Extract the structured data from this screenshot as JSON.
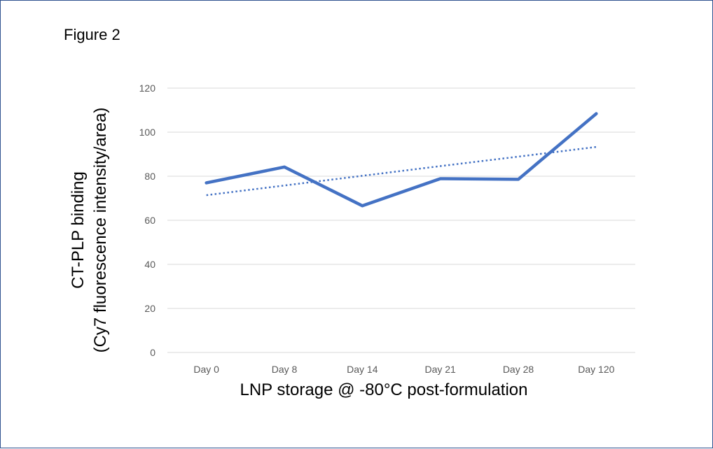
{
  "figure_title": "Figure 2",
  "chart_data": {
    "type": "line",
    "title": "",
    "xlabel": "LNP storage @ -80°C post-formulation",
    "ylabel": [
      "CT-PLP binding",
      "(Cy7 fluorescence intensity/area)"
    ],
    "categories": [
      "Day 0",
      "Day 8",
      "Day 14",
      "Day 21",
      "Day 28",
      "Day 120"
    ],
    "ylim": [
      0,
      120
    ],
    "yticks": [
      0,
      20,
      40,
      60,
      80,
      100,
      120
    ],
    "grid": true,
    "legend": "none",
    "series": [
      {
        "values": [
          77,
          84.2,
          66.6,
          78.9,
          78.6,
          108.4
        ],
        "color": "#4472c4",
        "style": "solid"
      }
    ],
    "trendline": {
      "type": "linear",
      "values": [
        71.4,
        75.8,
        80.2,
        84.6,
        88.9,
        93.3
      ],
      "color": "#4472c4",
      "style": "dotted"
    }
  }
}
